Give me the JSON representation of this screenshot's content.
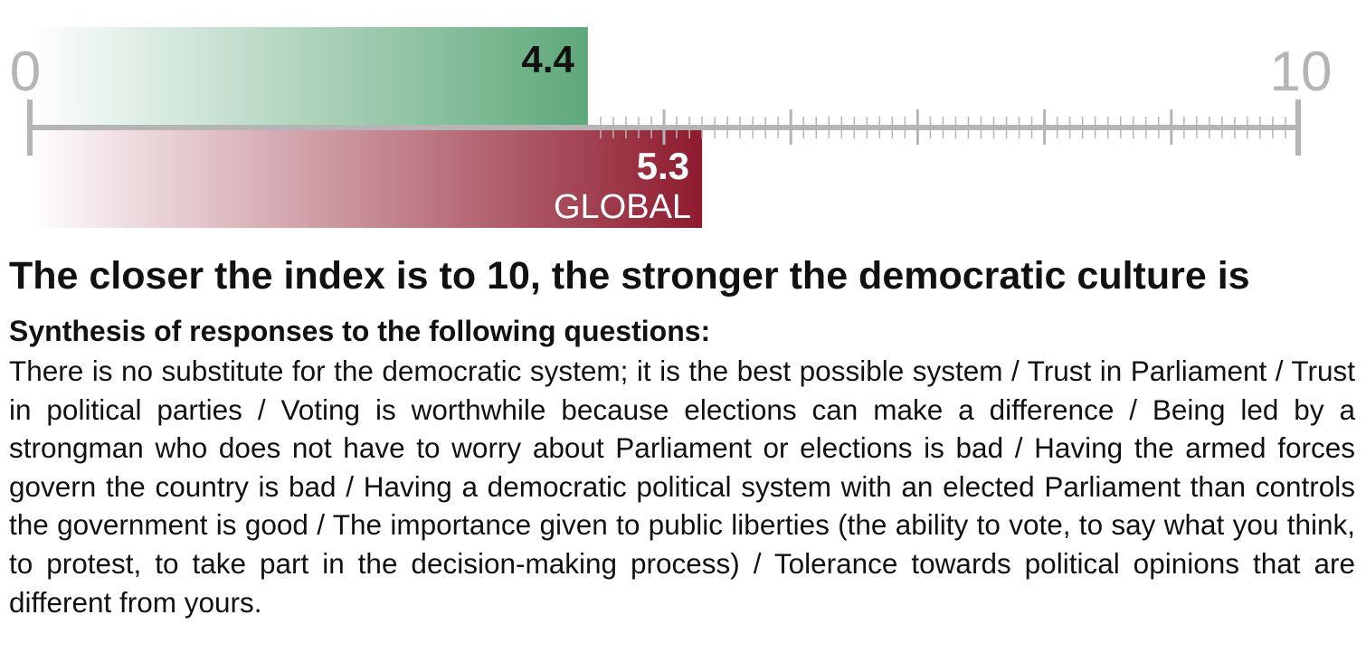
{
  "chart_data": {
    "type": "bar",
    "orientation": "horizontal",
    "axis": {
      "min": 0,
      "max": 10,
      "min_label": "0",
      "max_label": "10",
      "major_tick_step": 1,
      "minor_tick_step": 0.1,
      "minor_ticks_from": 4.5
    },
    "series": [
      {
        "name": "",
        "value": 4.4,
        "value_label": "4.4",
        "label": "",
        "color": "#5ea87a",
        "position": "above-axis"
      },
      {
        "name": "GLOBAL",
        "value": 5.3,
        "value_label": "5.3",
        "label": "GLOBAL",
        "color": "#8e1b2e",
        "position": "below-axis"
      }
    ]
  },
  "text": {
    "headline": "The closer the index is to 10, the stronger the democratic culture is",
    "subhead": "Synthesis of responses to the following questions:",
    "questions": "There is no substitute for the democratic system; it is the best possible system / Trust in Parliament / Trust in political parties / Voting is worthwhile because elections can make a difference / Being led by a strongman who does not have to worry about Parliament or elections is bad / Having the armed forces govern the country is bad / Having a democratic political system with an elected Parliament than controls the government is good / The importance given to public liberties (the ability to vote, to say what you think, to protest, to take part in the decision-making process) / Tolerance towards political opinions that are different from yours."
  },
  "colors": {
    "axis": "#b5b5b5",
    "text": "#111111"
  }
}
